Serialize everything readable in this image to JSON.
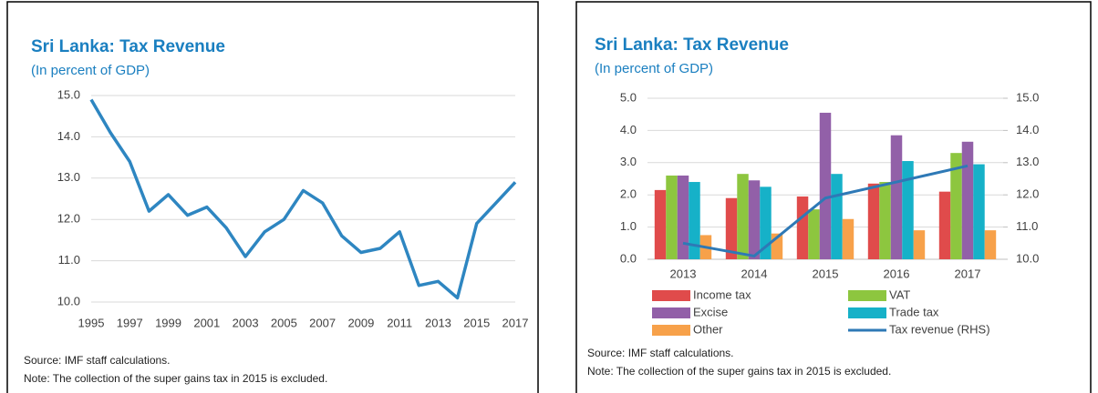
{
  "chart_data": [
    {
      "type": "line",
      "title": "Sri Lanka: Tax Revenue",
      "subtitle": "(In percent of GDP)",
      "x": [
        1995,
        1996,
        1997,
        1998,
        1999,
        2000,
        2001,
        2002,
        2003,
        2004,
        2005,
        2006,
        2007,
        2008,
        2009,
        2010,
        2011,
        2012,
        2013,
        2014,
        2015,
        2016,
        2017
      ],
      "series": [
        {
          "name": "Tax revenue",
          "color": "#2e86c1",
          "values": [
            14.9,
            14.1,
            13.4,
            12.2,
            12.6,
            12.1,
            12.3,
            11.8,
            11.1,
            11.7,
            12.0,
            12.7,
            12.4,
            11.6,
            11.2,
            11.3,
            11.7,
            10.4,
            10.5,
            10.1,
            11.9,
            12.4,
            12.9
          ]
        }
      ],
      "xlim": [
        1995,
        2017
      ],
      "xticks": [
        1995,
        1997,
        1999,
        2001,
        2003,
        2005,
        2007,
        2009,
        2011,
        2013,
        2015,
        2017
      ],
      "ylim": [
        10,
        15
      ],
      "yticks": [
        {
          "value": 10,
          "label": "10.0"
        },
        {
          "value": 11,
          "label": "11.0"
        },
        {
          "value": 12,
          "label": "12.0"
        },
        {
          "value": 13,
          "label": "13.0"
        },
        {
          "value": 14,
          "label": "14.0"
        },
        {
          "value": 15,
          "label": "15.0"
        }
      ],
      "grid": true,
      "source": "Source: IMF staff calculations.",
      "note": "Note: The collection of the super gains tax in 2015 is excluded."
    },
    {
      "type": "bar",
      "title": "Sri Lanka: Tax Revenue",
      "subtitle": "(In percent of GDP)",
      "categories": [
        "2013",
        "2014",
        "2015",
        "2016",
        "2017"
      ],
      "series": [
        {
          "name": "Income tax",
          "color": "#e04b4b",
          "values": [
            2.15,
            1.9,
            1.95,
            2.35,
            2.1
          ]
        },
        {
          "name": "VAT",
          "color": "#8dc63f",
          "values": [
            2.6,
            2.65,
            1.55,
            2.4,
            3.3
          ]
        },
        {
          "name": "Excise",
          "color": "#9260a8",
          "values": [
            2.6,
            2.45,
            4.55,
            3.85,
            3.65
          ]
        },
        {
          "name": "Trade tax",
          "color": "#16b1c8",
          "values": [
            2.4,
            2.25,
            2.65,
            3.05,
            2.95
          ]
        },
        {
          "name": "Other",
          "color": "#f7a14a",
          "values": [
            0.75,
            0.8,
            1.25,
            0.9,
            0.9
          ]
        },
        {
          "name": "Tax revenue (RHS)",
          "color": "#2e79b6",
          "type": "line",
          "axis": "y2",
          "values": [
            10.5,
            10.1,
            11.9,
            12.4,
            12.9
          ]
        }
      ],
      "ylim": [
        0,
        5
      ],
      "yticks": [
        {
          "value": 0,
          "label": "0.0"
        },
        {
          "value": 1,
          "label": "1.0"
        },
        {
          "value": 2,
          "label": "2.0"
        },
        {
          "value": 3,
          "label": "3.0"
        },
        {
          "value": 4,
          "label": "4.0"
        },
        {
          "value": 5,
          "label": "5.0"
        }
      ],
      "y2lim": [
        10,
        15
      ],
      "y2ticks": [
        {
          "value": 10,
          "label": "10.0"
        },
        {
          "value": 11,
          "label": "11.0"
        },
        {
          "value": 12,
          "label": "12.0"
        },
        {
          "value": 13,
          "label": "13.0"
        },
        {
          "value": 14,
          "label": "14.0"
        },
        {
          "value": 15,
          "label": "15.0"
        }
      ],
      "grid": true,
      "legend": "bottom",
      "source": "Source: IMF staff calculations.",
      "note": "Note: The collection of the super gains tax in 2015 is excluded."
    }
  ]
}
